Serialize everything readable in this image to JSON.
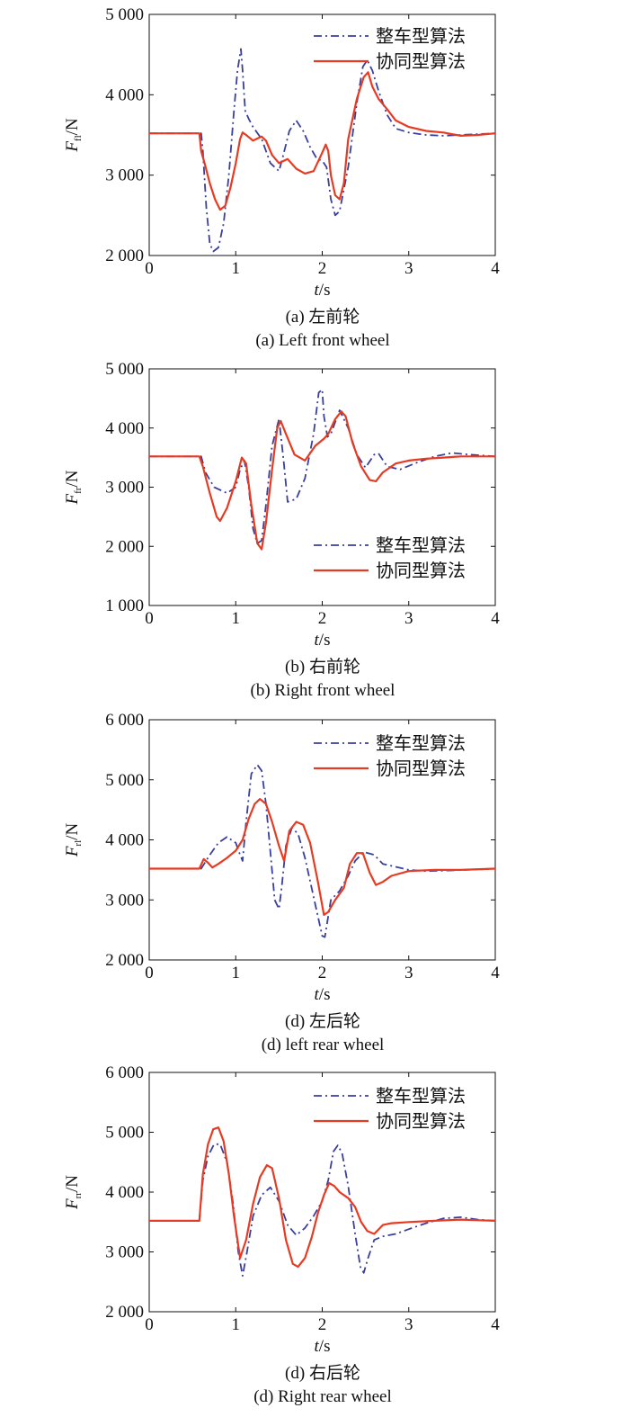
{
  "chart_data": [
    {
      "type": "line",
      "ylabel_main": "F",
      "ylabel_sub": "fl",
      "ylabel_unit": "/N",
      "xlabel_main": "t",
      "xlabel_unit": "/s",
      "xlim": [
        0,
        4
      ],
      "ylim": [
        2000,
        5000
      ],
      "xticks": [
        0,
        1,
        2,
        3,
        4
      ],
      "yticks": [
        2000,
        3000,
        4000,
        5000
      ],
      "ytick_labels": [
        "2 000",
        "3 000",
        "4 000",
        "5 000"
      ],
      "caption_cn": "(a) 左前轮",
      "caption_en": "(a) Left front wheel",
      "legend_position": "top-right",
      "series": [
        {
          "name": "整车型算法",
          "color": "#3a3f9e",
          "style": "dashdot",
          "x": [
            0,
            0.6,
            0.62,
            0.66,
            0.7,
            0.74,
            0.8,
            0.86,
            0.92,
            0.98,
            1.02,
            1.06,
            1.08,
            1.11,
            1.15,
            1.2,
            1.3,
            1.4,
            1.5,
            1.55,
            1.62,
            1.7,
            1.78,
            1.86,
            1.94,
            2.0,
            2.05,
            2.1,
            2.15,
            2.2,
            2.3,
            2.4,
            2.47,
            2.52,
            2.58,
            2.65,
            2.75,
            2.85,
            3.0,
            3.2,
            3.4,
            3.6,
            3.8,
            4.0
          ],
          "y": [
            3520,
            3520,
            3300,
            2600,
            2150,
            2050,
            2100,
            2400,
            3000,
            3800,
            4300,
            4570,
            4300,
            3800,
            3700,
            3600,
            3450,
            3150,
            3050,
            3250,
            3550,
            3680,
            3550,
            3350,
            3200,
            3180,
            3100,
            2700,
            2500,
            2550,
            3100,
            3900,
            4350,
            4430,
            4300,
            4050,
            3750,
            3580,
            3530,
            3500,
            3490,
            3500,
            3510,
            3520
          ]
        },
        {
          "name": "协同型算法",
          "color": "#e63b22",
          "style": "solid",
          "x": [
            0,
            0.58,
            0.6,
            0.64,
            0.7,
            0.76,
            0.82,
            0.88,
            0.94,
            1.0,
            1.05,
            1.08,
            1.12,
            1.2,
            1.3,
            1.35,
            1.42,
            1.5,
            1.6,
            1.7,
            1.8,
            1.9,
            2.0,
            2.04,
            2.07,
            2.1,
            2.15,
            2.2,
            2.25,
            2.3,
            2.4,
            2.48,
            2.53,
            2.58,
            2.65,
            2.75,
            2.85,
            3.0,
            3.2,
            3.4,
            3.6,
            3.8,
            4.0
          ],
          "y": [
            3520,
            3520,
            3300,
            3150,
            2900,
            2700,
            2570,
            2620,
            2850,
            3150,
            3450,
            3530,
            3500,
            3430,
            3480,
            3430,
            3250,
            3150,
            3200,
            3080,
            3020,
            3050,
            3280,
            3380,
            3300,
            3000,
            2750,
            2700,
            2900,
            3450,
            3950,
            4220,
            4280,
            4100,
            3950,
            3820,
            3680,
            3600,
            3550,
            3530,
            3490,
            3500,
            3520
          ]
        }
      ]
    },
    {
      "type": "line",
      "ylabel_main": "F",
      "ylabel_sub": "fr",
      "ylabel_unit": "/N",
      "xlabel_main": "t",
      "xlabel_unit": "/s",
      "xlim": [
        0,
        4
      ],
      "ylim": [
        1000,
        5000
      ],
      "xticks": [
        0,
        1,
        2,
        3,
        4
      ],
      "yticks": [
        1000,
        2000,
        3000,
        4000,
        5000
      ],
      "ytick_labels": [
        "1 000",
        "2 000",
        "3 000",
        "4 000",
        "5 000"
      ],
      "caption_cn": "(b) 右前轮",
      "caption_en": "(b) Right front wheel",
      "legend_position": "lower-right",
      "series": [
        {
          "name": "整车型算法",
          "color": "#3a3f9e",
          "style": "dashdot",
          "x": [
            0,
            0.6,
            0.65,
            0.75,
            0.9,
            1.0,
            1.05,
            1.1,
            1.15,
            1.2,
            1.25,
            1.3,
            1.35,
            1.42,
            1.5,
            1.55,
            1.6,
            1.7,
            1.8,
            1.9,
            1.96,
            2.0,
            2.02,
            2.06,
            2.1,
            2.2,
            2.3,
            2.4,
            2.5,
            2.6,
            2.65,
            2.75,
            2.9,
            3.1,
            3.3,
            3.5,
            3.7,
            4.0
          ],
          "y": [
            3520,
            3520,
            3250,
            3000,
            2900,
            3000,
            3300,
            3450,
            3000,
            2300,
            2050,
            2100,
            2700,
            3700,
            4150,
            3500,
            2750,
            2800,
            3150,
            3900,
            4600,
            4650,
            4200,
            3850,
            3900,
            4300,
            4000,
            3550,
            3330,
            3550,
            3570,
            3350,
            3300,
            3420,
            3520,
            3580,
            3550,
            3520
          ]
        },
        {
          "name": "协同型算法",
          "color": "#e63b22",
          "style": "solid",
          "x": [
            0,
            0.58,
            0.62,
            0.7,
            0.78,
            0.82,
            0.9,
            1.0,
            1.07,
            1.12,
            1.18,
            1.25,
            1.3,
            1.35,
            1.42,
            1.48,
            1.52,
            1.58,
            1.68,
            1.8,
            1.92,
            2.02,
            2.07,
            2.15,
            2.22,
            2.27,
            2.35,
            2.45,
            2.55,
            2.62,
            2.7,
            2.85,
            3.0,
            3.2,
            3.4,
            3.6,
            3.8,
            4.0
          ],
          "y": [
            3520,
            3520,
            3350,
            2900,
            2500,
            2430,
            2650,
            3100,
            3500,
            3400,
            2700,
            2050,
            1950,
            2400,
            3300,
            4000,
            4120,
            3900,
            3550,
            3450,
            3700,
            3820,
            3900,
            4150,
            4280,
            4200,
            3750,
            3350,
            3120,
            3100,
            3250,
            3400,
            3450,
            3480,
            3500,
            3520,
            3520,
            3520
          ]
        }
      ]
    },
    {
      "type": "line",
      "ylabel_main": "F",
      "ylabel_sub": "rl",
      "ylabel_unit": "/N",
      "xlabel_main": "t",
      "xlabel_unit": "/s",
      "xlim": [
        0,
        4
      ],
      "ylim": [
        2000,
        6000
      ],
      "xticks": [
        0,
        1,
        2,
        3,
        4
      ],
      "yticks": [
        2000,
        3000,
        4000,
        5000,
        6000
      ],
      "ytick_labels": [
        "2 000",
        "3 000",
        "4 000",
        "5 000",
        "6 000"
      ],
      "caption_cn": "(d) 左后轮",
      "caption_en": "(d) left rear wheel",
      "legend_position": "top-right",
      "series": [
        {
          "name": "整车型算法",
          "color": "#3a3f9e",
          "style": "dashdot",
          "x": [
            0,
            0.6,
            0.7,
            0.8,
            0.9,
            1.0,
            1.05,
            1.08,
            1.12,
            1.18,
            1.25,
            1.3,
            1.35,
            1.4,
            1.45,
            1.5,
            1.53,
            1.58,
            1.65,
            1.72,
            1.8,
            1.9,
            2.0,
            2.03,
            2.1,
            2.2,
            2.3,
            2.38,
            2.48,
            2.6,
            2.7,
            2.85,
            3.0,
            3.2,
            3.5,
            4.0
          ],
          "y": [
            3520,
            3520,
            3750,
            3950,
            4050,
            3950,
            3750,
            3650,
            4300,
            5100,
            5250,
            5150,
            4600,
            3800,
            3000,
            2850,
            3200,
            3900,
            4200,
            4100,
            3700,
            3050,
            2400,
            2380,
            3000,
            3150,
            3400,
            3650,
            3800,
            3750,
            3600,
            3550,
            3500,
            3480,
            3490,
            3520
          ]
        },
        {
          "name": "协同型算法",
          "color": "#e63b22",
          "style": "solid",
          "x": [
            0,
            0.58,
            0.63,
            0.68,
            0.73,
            0.8,
            0.9,
            1.0,
            1.08,
            1.15,
            1.22,
            1.28,
            1.35,
            1.42,
            1.5,
            1.56,
            1.62,
            1.7,
            1.78,
            1.86,
            1.95,
            2.02,
            2.07,
            2.15,
            2.25,
            2.32,
            2.4,
            2.47,
            2.55,
            2.62,
            2.7,
            2.8,
            3.0,
            3.3,
            3.6,
            4.0
          ],
          "y": [
            3520,
            3520,
            3680,
            3620,
            3540,
            3600,
            3700,
            3820,
            4000,
            4350,
            4600,
            4680,
            4600,
            4300,
            3900,
            3650,
            4150,
            4300,
            4250,
            3950,
            3300,
            2750,
            2800,
            3000,
            3200,
            3600,
            3780,
            3780,
            3450,
            3250,
            3300,
            3400,
            3480,
            3500,
            3500,
            3520
          ]
        }
      ]
    },
    {
      "type": "line",
      "ylabel_main": "F",
      "ylabel_sub": "rr",
      "ylabel_unit": "/N",
      "xlabel_main": "t",
      "xlabel_unit": "/s",
      "xlim": [
        0,
        4
      ],
      "ylim": [
        2000,
        6000
      ],
      "xticks": [
        0,
        1,
        2,
        3,
        4
      ],
      "yticks": [
        2000,
        3000,
        4000,
        5000,
        6000
      ],
      "ytick_labels": [
        "2 000",
        "3 000",
        "4 000",
        "5 000",
        "6 000"
      ],
      "caption_cn": "(d) 右后轮",
      "caption_en": "(d) Right rear wheel",
      "legend_position": "top-right",
      "series": [
        {
          "name": "整车型算法",
          "color": "#3a3f9e",
          "style": "dashdot",
          "x": [
            0,
            0.58,
            0.62,
            0.68,
            0.75,
            0.82,
            0.9,
            0.97,
            1.03,
            1.08,
            1.13,
            1.2,
            1.3,
            1.4,
            1.5,
            1.6,
            1.7,
            1.8,
            1.9,
            2.0,
            2.07,
            2.13,
            2.18,
            2.23,
            2.3,
            2.38,
            2.44,
            2.48,
            2.53,
            2.6,
            2.7,
            2.85,
            3.0,
            3.2,
            3.4,
            3.6,
            3.8,
            4.0
          ],
          "y": [
            3520,
            3520,
            4200,
            4600,
            4800,
            4800,
            4500,
            3800,
            3000,
            2600,
            3000,
            3600,
            3950,
            4080,
            3850,
            3450,
            3280,
            3400,
            3600,
            3850,
            4200,
            4680,
            4780,
            4650,
            4100,
            3300,
            2750,
            2650,
            2900,
            3200,
            3260,
            3300,
            3380,
            3480,
            3560,
            3580,
            3540,
            3520
          ]
        },
        {
          "name": "协同型算法",
          "color": "#e63b22",
          "style": "solid",
          "x": [
            0,
            0.58,
            0.62,
            0.68,
            0.74,
            0.8,
            0.86,
            0.92,
            0.98,
            1.05,
            1.12,
            1.2,
            1.28,
            1.36,
            1.42,
            1.5,
            1.58,
            1.66,
            1.72,
            1.8,
            1.88,
            1.95,
            2.02,
            2.08,
            2.14,
            2.2,
            2.3,
            2.38,
            2.45,
            2.52,
            2.6,
            2.7,
            2.8,
            3.0,
            3.3,
            3.6,
            3.8,
            4.0
          ],
          "y": [
            3520,
            3520,
            4300,
            4800,
            5050,
            5080,
            4850,
            4300,
            3600,
            2900,
            3200,
            3800,
            4250,
            4450,
            4400,
            3900,
            3200,
            2800,
            2750,
            2900,
            3250,
            3650,
            3950,
            4150,
            4100,
            4000,
            3900,
            3750,
            3500,
            3350,
            3300,
            3450,
            3480,
            3500,
            3520,
            3540,
            3530,
            3520
          ]
        }
      ]
    }
  ]
}
